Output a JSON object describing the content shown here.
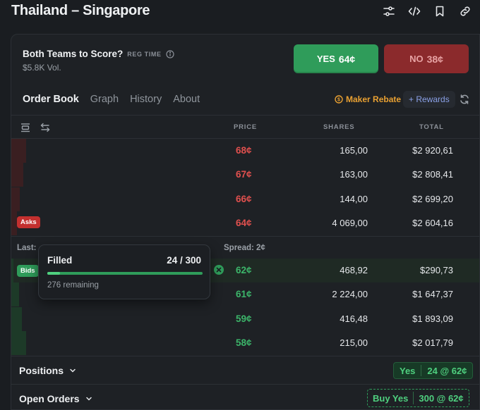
{
  "page": {
    "title": "Thailand – Singapore"
  },
  "top_icons": [
    "sliders-icon",
    "code-icon",
    "bookmark-icon",
    "link-icon"
  ],
  "market": {
    "question": "Both Teams to Score?",
    "tag": "REG TIME",
    "volume": "$5.8K Vol."
  },
  "buttons": {
    "yes_label": "YES",
    "yes_price": "64¢",
    "no_label": "NO",
    "no_price": "38¢"
  },
  "tabs": [
    "Order Book",
    "Graph",
    "History",
    "About"
  ],
  "maker_rebate": "Maker Rebate",
  "rewards": "+ Rewards",
  "columns": {
    "price": "PRICE",
    "shares": "SHARES",
    "total": "TOTAL"
  },
  "asks": [
    {
      "price": "68¢",
      "shares": "165,00",
      "total": "$2 920,61",
      "depth": 0.95
    },
    {
      "price": "67¢",
      "shares": "163,00",
      "total": "$2 808,41",
      "depth": 0.75
    },
    {
      "price": "66¢",
      "shares": "144,00",
      "total": "$2 699,20",
      "depth": 0.55
    },
    {
      "price": "64¢",
      "shares": "4 069,00",
      "total": "$2 604,16",
      "depth": 0.35
    }
  ],
  "asks_badge": "Asks",
  "last": "Last: ",
  "spread": "Spread: 2¢",
  "bids_badge": "Bids",
  "bids": [
    {
      "price": "62¢",
      "shares": "468,92",
      "total": "$290,73",
      "depth": 0.15
    },
    {
      "price": "61¢",
      "shares": "2 224,00",
      "total": "$1 647,37",
      "depth": 0.5
    },
    {
      "price": "59¢",
      "shares": "416,48",
      "total": "$1 893,09",
      "depth": 0.7
    },
    {
      "price": "58¢",
      "shares": "215,00",
      "total": "$2 017,79",
      "depth": 0.95
    }
  ],
  "tooltip": {
    "title": "Filled",
    "count": "24 / 300",
    "remaining": "276 remaining",
    "fill_fraction": 0.08
  },
  "positions": {
    "label": "Positions",
    "side": "Yes",
    "detail": "24 @ 62¢"
  },
  "open_orders": {
    "label": "Open Orders",
    "side": "Buy Yes",
    "detail": "300 @ 62¢"
  },
  "colors": {
    "green": "#2f9c5a",
    "red": "#c3302f",
    "accent_orange": "#e8a032",
    "accent_blue": "#8aa0e6"
  }
}
